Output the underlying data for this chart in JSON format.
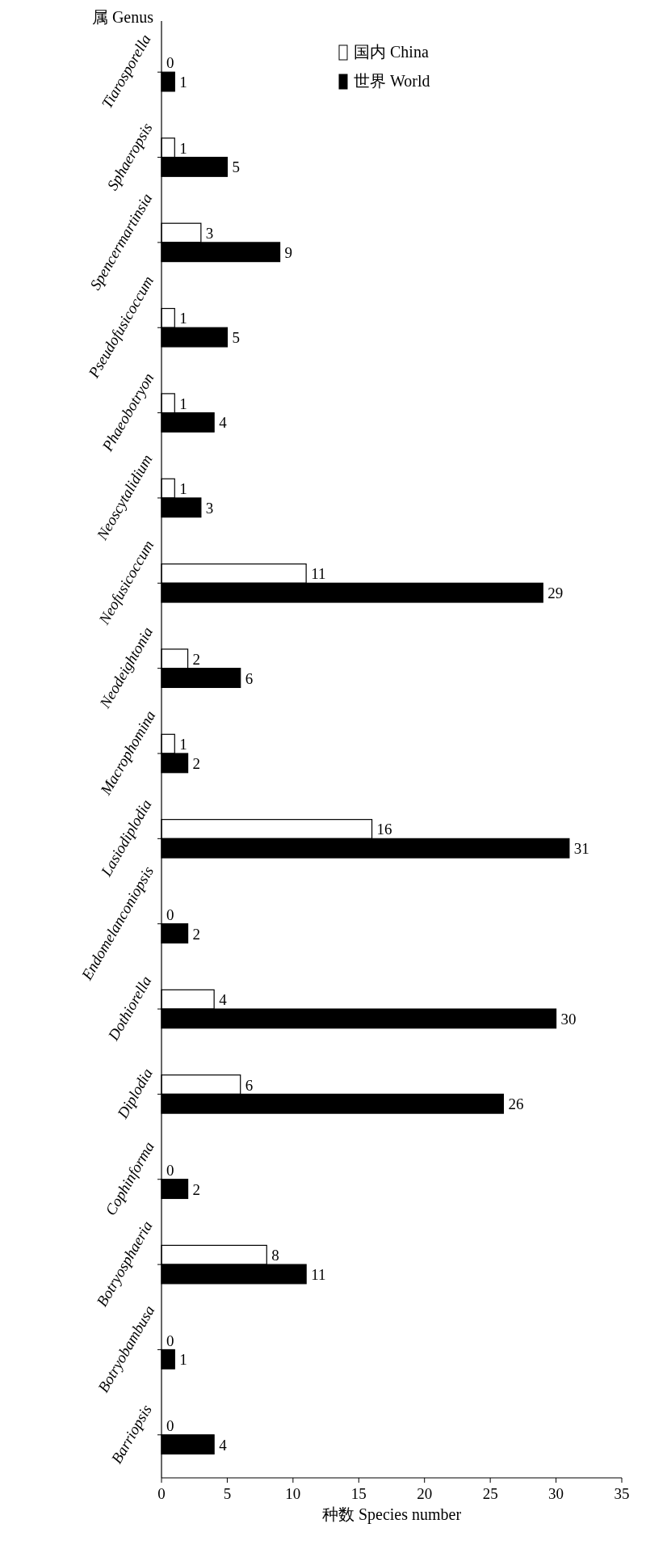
{
  "chart_data": {
    "type": "bar",
    "orientation": "horizontal",
    "xlabel": "种数 Species number",
    "ylabel": "属 Genus",
    "categories": [
      "Tiarosporella",
      "Sphaeropsis",
      "Spencermartinsia",
      "Pseudofusicoccum",
      "Phaeobotryon",
      "Neoscytalidium",
      "Neofusicoccum",
      "Neodeightonia",
      "Macrophomina",
      "Lasiodiplodia",
      "Endomelanconiopsis",
      "Dothiorella",
      "Diplodia",
      "Cophinforma",
      "Botryosphaeria",
      "Botryobambusa",
      "Barriopsis"
    ],
    "series": [
      {
        "name": "国内 China",
        "color": "#ffffff",
        "values": [
          0,
          1,
          3,
          1,
          1,
          1,
          11,
          2,
          1,
          16,
          0,
          4,
          6,
          0,
          8,
          0,
          0
        ]
      },
      {
        "name": "世界 World",
        "color": "#000000",
        "values": [
          1,
          5,
          9,
          5,
          4,
          3,
          29,
          6,
          2,
          31,
          2,
          30,
          26,
          2,
          11,
          1,
          4
        ]
      }
    ],
    "xlim": [
      0,
      35
    ],
    "xticks": [
      0,
      5,
      10,
      15,
      20,
      25,
      30,
      35
    ],
    "data_labels": true,
    "legend": "top right",
    "grid": false
  }
}
